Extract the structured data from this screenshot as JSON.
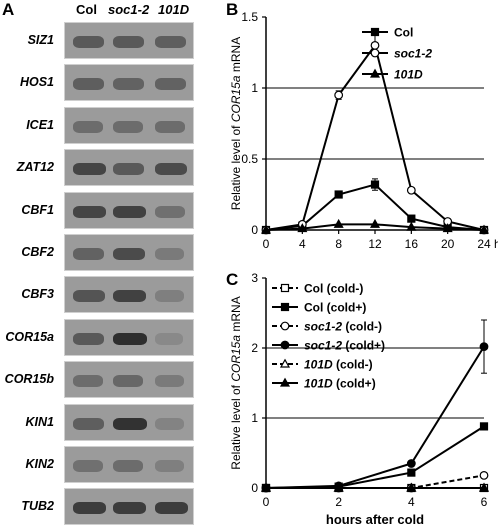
{
  "panels": {
    "a": "A",
    "b": "B",
    "c": "C"
  },
  "blot": {
    "lanes": [
      "Col",
      "soc1-2",
      "101D"
    ],
    "genes": [
      {
        "name": "SIZ1",
        "intensity": [
          0.55,
          0.55,
          0.5
        ]
      },
      {
        "name": "HOS1",
        "intensity": [
          0.5,
          0.45,
          0.45
        ]
      },
      {
        "name": "ICE1",
        "intensity": [
          0.35,
          0.35,
          0.35
        ]
      },
      {
        "name": "ZAT12",
        "intensity": [
          0.75,
          0.55,
          0.7
        ]
      },
      {
        "name": "CBF1",
        "intensity": [
          0.75,
          0.8,
          0.3
        ]
      },
      {
        "name": "CBF2",
        "intensity": [
          0.45,
          0.7,
          0.2
        ]
      },
      {
        "name": "CBF3",
        "intensity": [
          0.6,
          0.8,
          0.15
        ]
      },
      {
        "name": "COR15a",
        "intensity": [
          0.55,
          1.0,
          0.05
        ]
      },
      {
        "name": "COR15b",
        "intensity": [
          0.35,
          0.4,
          0.2
        ]
      },
      {
        "name": "KIN1",
        "intensity": [
          0.5,
          0.95,
          0.1
        ]
      },
      {
        "name": "KIN2",
        "intensity": [
          0.3,
          0.35,
          0.15
        ]
      },
      {
        "name": "TUB2",
        "intensity": [
          0.85,
          0.85,
          0.85
        ]
      }
    ]
  },
  "chart_data": [
    {
      "type": "line",
      "panel": "B",
      "ylabel_prefix": "Relative level of ",
      "ylabel_gene": "COR15a",
      "ylabel_suffix": " mRNA",
      "xlabel": "",
      "x": [
        0,
        4,
        8,
        12,
        16,
        20,
        24
      ],
      "x_tick_labels": [
        "0",
        "4",
        "8",
        "12",
        "16",
        "20",
        "24"
      ],
      "x_unit": "h",
      "ylim": [
        0,
        1.5
      ],
      "y_ticks": [
        0,
        0.5,
        1,
        1.5
      ],
      "y_tick_labels": [
        "0",
        "0.5",
        "1",
        "1.5"
      ],
      "gridlines": [
        0.5,
        1
      ],
      "legend_placement": "top-right",
      "series": [
        {
          "name": "Col",
          "marker": "square-filled",
          "dash": false,
          "values": [
            0,
            0.03,
            0.25,
            0.32,
            0.08,
            0.02,
            0
          ],
          "errors": [
            0,
            0,
            0.01,
            0.04,
            0,
            0,
            0
          ]
        },
        {
          "name": "soc1-2",
          "marker": "circle-open",
          "dash": false,
          "values": [
            0,
            0.04,
            0.95,
            1.3,
            0.28,
            0.06,
            0
          ],
          "errors": [
            0,
            0,
            0.03,
            0.07,
            0,
            0,
            0
          ]
        },
        {
          "name": "101D",
          "marker": "triangle-filled",
          "dash": false,
          "values": [
            0,
            0.01,
            0.04,
            0.04,
            0.02,
            0.01,
            0
          ],
          "errors": [
            0,
            0,
            0,
            0,
            0,
            0,
            0
          ]
        }
      ]
    },
    {
      "type": "line",
      "panel": "C",
      "ylabel_prefix": "Relative level of ",
      "ylabel_gene": "COR15a",
      "ylabel_suffix": " mRNA",
      "xlabel": "hours after cold",
      "x": [
        0,
        2,
        4,
        6
      ],
      "x_tick_labels": [
        "0",
        "2",
        "4",
        "6"
      ],
      "ylim": [
        0,
        3
      ],
      "y_ticks": [
        0,
        1,
        2,
        3
      ],
      "y_tick_labels": [
        "0",
        "1",
        "2",
        "3"
      ],
      "gridlines": [
        1,
        2
      ],
      "legend_placement": "top-left",
      "series": [
        {
          "name": "Col (cold-)",
          "marker": "square-open",
          "dash": true,
          "values": [
            0,
            0,
            0,
            0
          ],
          "errors": [
            0,
            0,
            0,
            0
          ]
        },
        {
          "name": "Col (cold+)",
          "marker": "square-filled",
          "dash": false,
          "values": [
            0,
            0.02,
            0.22,
            0.88
          ],
          "errors": [
            0,
            0,
            0,
            0
          ]
        },
        {
          "name": "soc1-2 (cold-)",
          "marker": "circle-open",
          "dash": true,
          "values": [
            0,
            0,
            0,
            0.18
          ],
          "errors": [
            0,
            0,
            0,
            0
          ]
        },
        {
          "name": "soc1-2 (cold+)",
          "marker": "circle-filled",
          "dash": false,
          "values": [
            0,
            0.03,
            0.35,
            2.02
          ],
          "errors": [
            0,
            0,
            0,
            0.38
          ]
        },
        {
          "name": "101D (cold-)",
          "marker": "triangle-open",
          "dash": true,
          "values": [
            0,
            0,
            0,
            0
          ],
          "errors": [
            0,
            0,
            0,
            0
          ]
        },
        {
          "name": "101D (cold+)",
          "marker": "triangle-filled",
          "dash": false,
          "values": [
            0,
            0,
            0,
            0
          ],
          "errors": [
            0,
            0,
            0,
            0
          ]
        }
      ]
    }
  ]
}
